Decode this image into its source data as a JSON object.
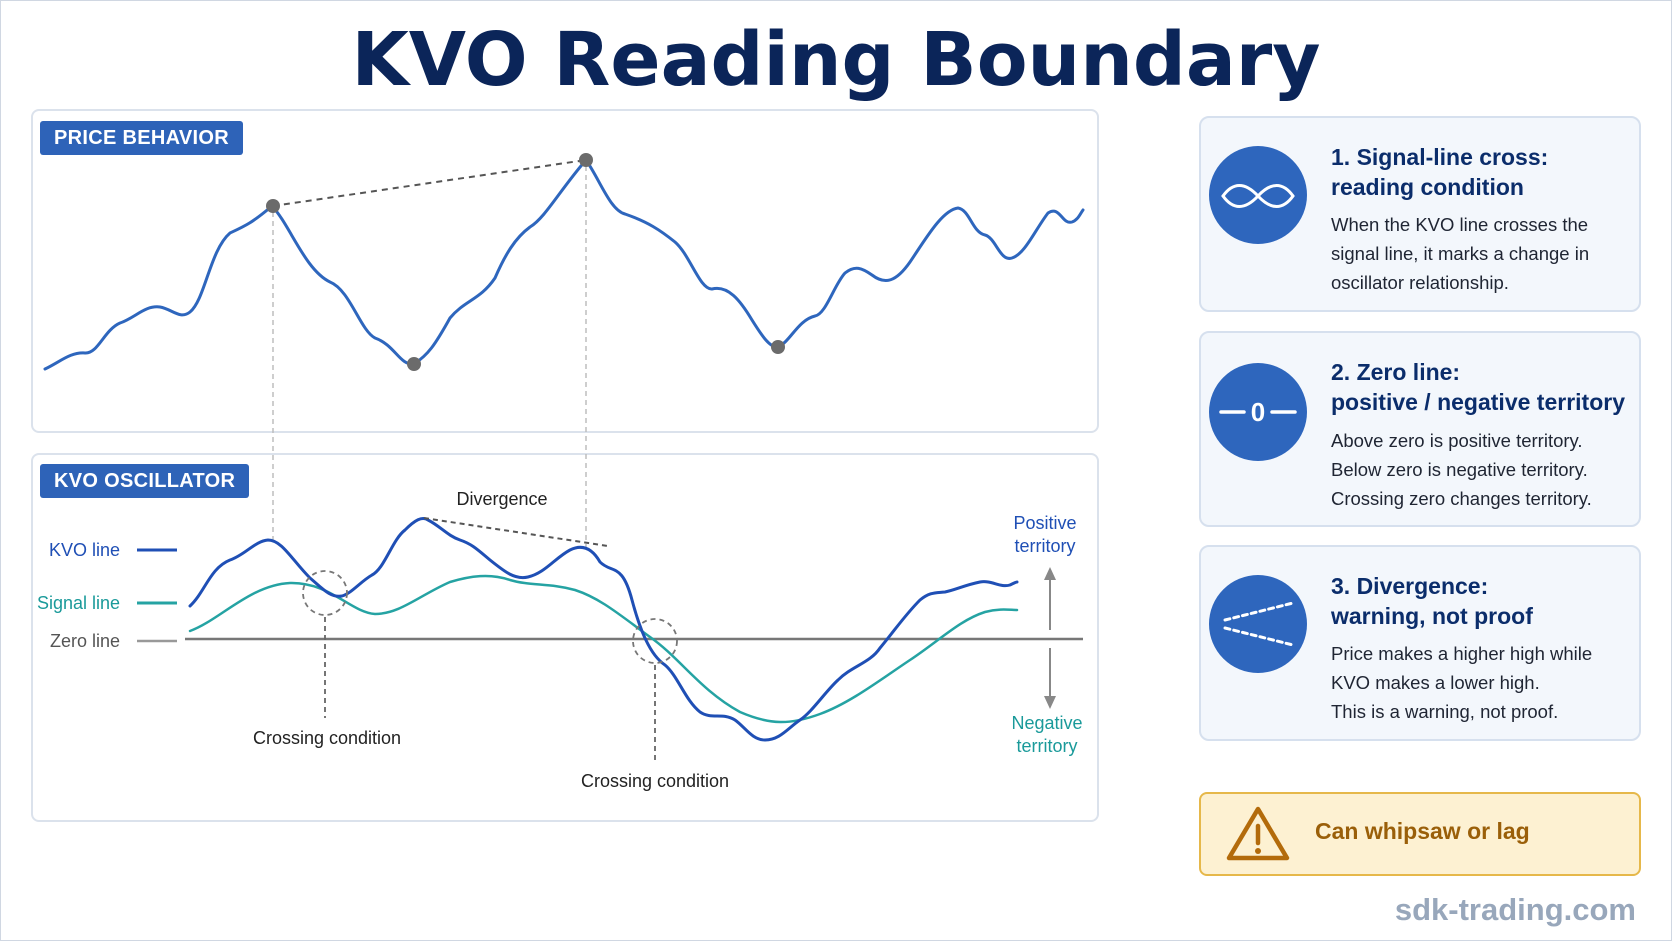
{
  "title": "KVO Reading Boundary",
  "price_panel": {
    "tag": "PRICE BEHAVIOR"
  },
  "kvo_panel": {
    "tag": "KVO OSCILLATOR",
    "legend": {
      "kvo": "KVO line",
      "signal": "Signal line",
      "zero": "Zero line"
    },
    "divergence_label": "Divergence",
    "crossing_label_1": "Crossing condition",
    "crossing_label_2": "Crossing condition",
    "positive_label": [
      "Positive",
      "territory"
    ],
    "negative_label": [
      "Negative",
      "territory"
    ]
  },
  "cards": [
    {
      "title": [
        "1. Signal-line cross:",
        "reading condition"
      ],
      "body": [
        "When the KVO line crosses the",
        "signal line, it marks a change in",
        "oscillator relationship."
      ],
      "icon": "cross-lines-icon"
    },
    {
      "title": [
        "2. Zero line:",
        "positive / negative territory"
      ],
      "body": [
        "Above zero is positive territory.",
        "Below zero is negative territory.",
        "Crossing zero changes territory."
      ],
      "icon": "zero-line-icon"
    },
    {
      "title": [
        "3. Divergence:",
        "warning, not proof"
      ],
      "body": [
        "Price makes a higher high while",
        "KVO makes a lower high.",
        "This is a warning, not proof."
      ],
      "icon": "divergence-icon"
    }
  ],
  "warning": {
    "label": "Can whipsaw or lag",
    "icon": "warning-triangle-icon"
  },
  "watermark": "sdk-trading.com",
  "colors": {
    "title": "#0b2559",
    "accent_blue": "#2e66bd",
    "kvo_line": "#1f4fb5",
    "signal_line": "#25a3a3",
    "zero_line": "#777777",
    "warning_fill": "#fdf1d2",
    "warning_border": "#e6b84a"
  }
}
